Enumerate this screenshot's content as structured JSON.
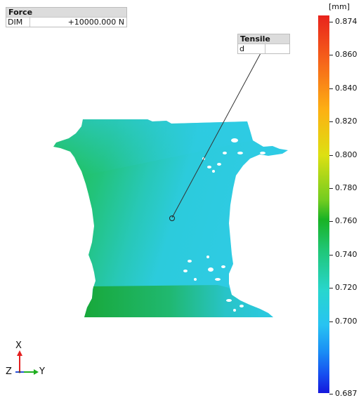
{
  "force_panel": {
    "title": "Force",
    "label": "DIM",
    "value": "+10000.000 N"
  },
  "tensile_panel": {
    "title": "Tensile",
    "label": "d",
    "value": ""
  },
  "color_scale": {
    "unit": "[mm]",
    "ticks": [
      "0.874",
      "0.860",
      "0.840",
      "0.820",
      "0.800",
      "0.780",
      "0.760",
      "0.740",
      "0.720",
      "0.700",
      "0.687"
    ]
  },
  "triad": {
    "x_label": "X",
    "y_label": "Y",
    "z_label": "Z",
    "x_color": "#e32020",
    "y_color": "#1fae1f",
    "z_color": "#2a4fd8"
  },
  "colors": {
    "model_cyan": "#2cc9e2",
    "model_green": "#20bd3c"
  }
}
